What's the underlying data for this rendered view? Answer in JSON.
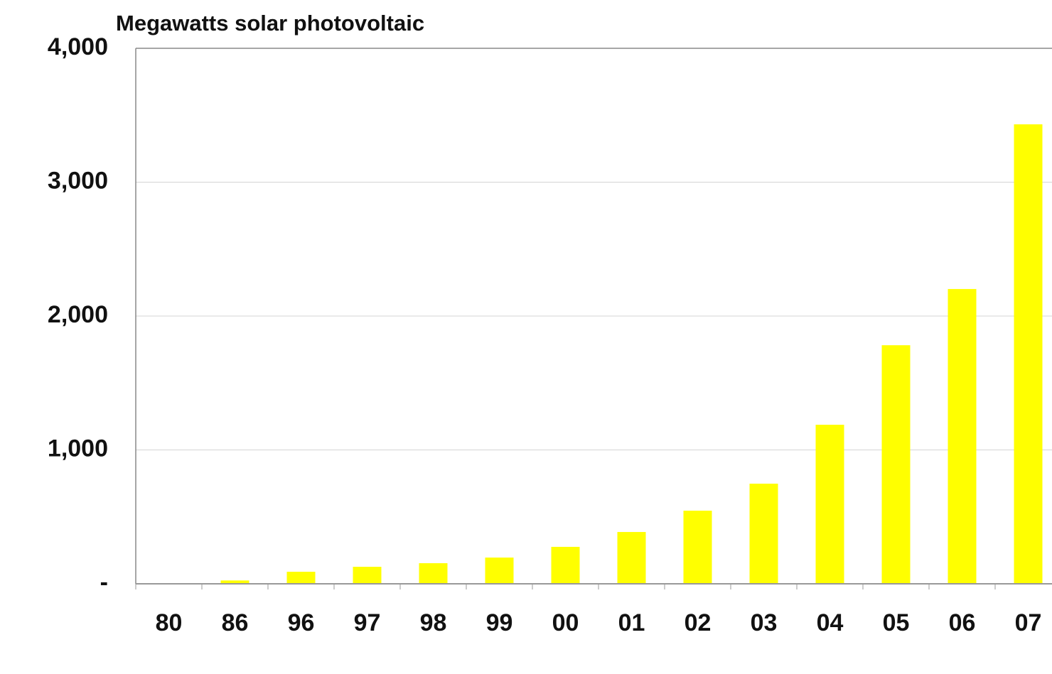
{
  "chart_data": {
    "type": "bar",
    "title": "Megawatts solar photovoltaic",
    "categories": [
      "80",
      "86",
      "96",
      "97",
      "98",
      "99",
      "00",
      "01",
      "02",
      "03",
      "04",
      "05",
      "06",
      "07"
    ],
    "values": [
      5,
      25,
      90,
      127,
      154,
      196,
      276,
      387,
      546,
      748,
      1188,
      1782,
      2202,
      3432
    ],
    "color": "#ffff00",
    "ylim": [
      0,
      4000
    ],
    "yticks": [
      {
        "value": 0,
        "label": "-"
      },
      {
        "value": 1000,
        "label": "1,000"
      },
      {
        "value": 2000,
        "label": "2,000"
      },
      {
        "value": 3000,
        "label": "3,000"
      },
      {
        "value": 4000,
        "label": "4,000"
      }
    ],
    "grid": true
  }
}
